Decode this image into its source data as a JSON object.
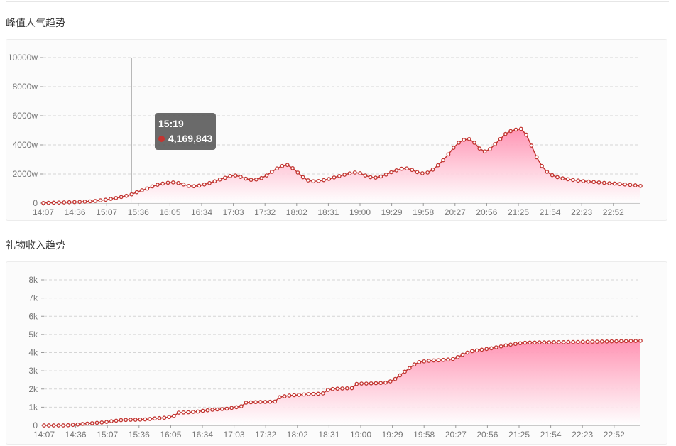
{
  "sections": {
    "peak": {
      "title": "峰值人气趋势"
    },
    "gift": {
      "title": "礼物收入趋势"
    }
  },
  "tooltip": {
    "time": "15:19",
    "value": "4,169,843"
  },
  "colors": {
    "line": "#c23531",
    "area_top": "#ff8fb0",
    "area_bottom": "#ffffff",
    "grid": "#d5d5d5"
  },
  "chart_data": [
    {
      "type": "area",
      "title": "",
      "xlabel": "",
      "ylabel": "",
      "x_ticks": [
        "14:07",
        "14:36",
        "15:07",
        "15:36",
        "16:05",
        "16:34",
        "17:03",
        "17:32",
        "18:02",
        "18:31",
        "19:00",
        "19:29",
        "19:58",
        "20:27",
        "20:56",
        "21:25",
        "21:54",
        "22:23",
        "22:52"
      ],
      "y_ticks": [
        "0",
        "2000w",
        "4000w",
        "6000w",
        "8000w",
        "10000w"
      ],
      "ylim": [
        0,
        10000
      ],
      "y_unit": "w",
      "grid": true,
      "legend": "none",
      "series": [
        {
          "values": [
            10,
            20,
            30,
            40,
            50,
            60,
            70,
            80,
            100,
            120,
            150,
            190,
            230,
            290,
            350,
            420,
            500,
            600,
            750,
            880,
            1000,
            1150,
            1260,
            1340,
            1400,
            1420,
            1380,
            1280,
            1180,
            1160,
            1200,
            1280,
            1380,
            1500,
            1620,
            1740,
            1860,
            1900,
            1800,
            1680,
            1600,
            1620,
            1720,
            1900,
            2150,
            2380,
            2550,
            2620,
            2400,
            2100,
            1780,
            1560,
            1500,
            1520,
            1580,
            1660,
            1760,
            1860,
            1950,
            2040,
            2100,
            2050,
            1900,
            1780,
            1750,
            1830,
            1960,
            2120,
            2250,
            2360,
            2380,
            2280,
            2130,
            2050,
            2100,
            2300,
            2600,
            2950,
            3350,
            3800,
            4150,
            4350,
            4400,
            4150,
            3750,
            3550,
            3700,
            4050,
            4400,
            4750,
            4950,
            5050,
            5100,
            4700,
            3950,
            3150,
            2550,
            2150,
            1920,
            1780,
            1700,
            1640,
            1590,
            1550,
            1510,
            1480,
            1450,
            1420,
            1390,
            1360,
            1340,
            1310,
            1280,
            1250,
            1220,
            1180
          ]
        }
      ]
    },
    {
      "type": "area",
      "title": "",
      "xlabel": "",
      "ylabel": "",
      "x_ticks": [
        "14:07",
        "14:36",
        "15:07",
        "15:36",
        "16:05",
        "16:34",
        "17:03",
        "17:32",
        "18:02",
        "18:31",
        "19:00",
        "19:29",
        "19:58",
        "20:27",
        "20:56",
        "21:25",
        "21:54",
        "22:23",
        "22:52"
      ],
      "y_ticks": [
        "0",
        "1k",
        "2k",
        "3k",
        "4k",
        "5k",
        "6k",
        "7k",
        "8k"
      ],
      "ylim": [
        0,
        8500
      ],
      "y_unit": "k",
      "grid": true,
      "legend": "none",
      "series": [
        {
          "values": [
            0,
            0,
            0,
            0,
            0,
            10,
            30,
            50,
            80,
            100,
            120,
            140,
            160,
            190,
            230,
            260,
            290,
            300,
            310,
            310,
            320,
            330,
            350,
            380,
            400,
            420,
            460,
            520,
            700,
            710,
            720,
            740,
            760,
            800,
            830,
            860,
            880,
            900,
            920,
            960,
            1000,
            1050,
            1250,
            1270,
            1280,
            1290,
            1290,
            1300,
            1310,
            1550,
            1600,
            1640,
            1660,
            1680,
            1700,
            1720,
            1730,
            1740,
            1760,
            1950,
            2000,
            2020,
            2030,
            2040,
            2050,
            2280,
            2300,
            2300,
            2310,
            2320,
            2330,
            2350,
            2420,
            2550,
            2750,
            2950,
            3150,
            3350,
            3480,
            3520,
            3550,
            3570,
            3580,
            3600,
            3620,
            3650,
            3750,
            3880,
            4000,
            4080,
            4120,
            4160,
            4200,
            4240,
            4290,
            4340,
            4400,
            4440,
            4480,
            4520,
            4540,
            4550,
            4550,
            4560,
            4560,
            4560,
            4570,
            4570,
            4570,
            4580,
            4580,
            4580,
            4590,
            4590,
            4600,
            4600,
            4610,
            4610,
            4620,
            4620,
            4630,
            4630,
            4640,
            4640,
            4650
          ]
        }
      ]
    }
  ]
}
